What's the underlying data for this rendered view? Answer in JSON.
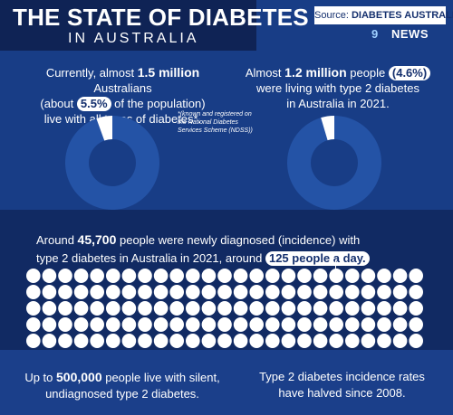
{
  "header": {
    "title": "THE STATE OF DIABETES",
    "subtitle": "IN AUSTRALIA",
    "source_label": "Source:",
    "source_name": "DIABETES AUSTRALIA",
    "logo_mark": "9",
    "logo_text": "NEWS"
  },
  "stat_all": {
    "line1_pre": "Currently, almost ",
    "line1_bold": "1.5 million",
    "line1_post": " Australians",
    "line2_pre": "(about ",
    "line2_pill": "5.5%",
    "line2_post": " of the population)",
    "line3": "live with all types of diabetes*.",
    "share_percent": 5.5
  },
  "footnote": "*(known and registered on the National Diabetes Services Scheme (NDSS))",
  "stat_type2": {
    "line1_pre": "Almost ",
    "line1_bold": "1.2 million",
    "line1_post": " people ",
    "line1_pill": "(4.6%)",
    "line2": "were living with type 2 diabetes",
    "line3": "in Australia in 2021.",
    "share_percent": 4.6
  },
  "incidence": {
    "line1_pre": "Around ",
    "line1_bold": "45,700",
    "line1_post": " people were newly diagnosed (incidence) with",
    "line2_pre": "type 2 diabetes in Australia in 2021, around ",
    "line2_pill": "125 people a day.",
    "dot_count": 125
  },
  "undiagnosed": {
    "line1_pre": "Up to ",
    "line1_bold": "500,000",
    "line1_post": " people live with silent,",
    "line2": "undiagnosed type 2 diabetes."
  },
  "incidence_trend": {
    "line1": "Type 2 diabetes incidence rates",
    "line2": "have halved since 2008."
  },
  "colors": {
    "background": "#1b3f8a",
    "panel_dark": "#112a63",
    "donut": "#2453a6",
    "highlight": "#ffffff"
  }
}
